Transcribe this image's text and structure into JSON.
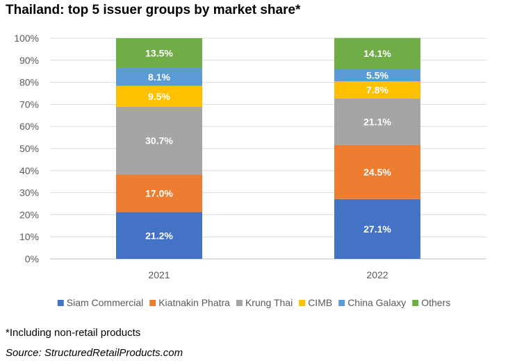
{
  "chart_data": {
    "type": "bar",
    "stacked": true,
    "title": "Thailand: top 5 issuer groups by market share*",
    "categories": [
      "2021",
      "2022"
    ],
    "ylim": [
      0,
      100
    ],
    "yticks": [
      "0%",
      "10%",
      "20%",
      "30%",
      "40%",
      "50%",
      "60%",
      "70%",
      "80%",
      "90%",
      "100%"
    ],
    "grid": true,
    "legend_position": "bottom",
    "series": [
      {
        "name": "Siam Commercial",
        "color": "#4472C4",
        "values": [
          21.2,
          27.1
        ],
        "labels": [
          "21.2%",
          "27.1%"
        ]
      },
      {
        "name": "Kiatnakin Phatra",
        "color": "#ED7D31",
        "values": [
          17.0,
          24.5
        ],
        "labels": [
          "17.0%",
          "24.5%"
        ]
      },
      {
        "name": "Krung Thai",
        "color": "#A5A5A5",
        "values": [
          30.7,
          21.1
        ],
        "labels": [
          "30.7%",
          "21.1%"
        ]
      },
      {
        "name": "CIMB",
        "color": "#FFC000",
        "values": [
          9.5,
          7.8
        ],
        "labels": [
          "9.5%",
          "7.8%"
        ]
      },
      {
        "name": "China Galaxy",
        "color": "#5B9BD5",
        "values": [
          8.1,
          5.5
        ],
        "labels": [
          "8.1%",
          "5.5%"
        ]
      },
      {
        "name": "Others",
        "color": "#70AD47",
        "values": [
          13.5,
          14.1
        ],
        "labels": [
          "13.5%",
          "14.1%"
        ]
      }
    ]
  },
  "footnote": "*Including non-retail products",
  "source": "Source: StructuredRetailProducts.com"
}
